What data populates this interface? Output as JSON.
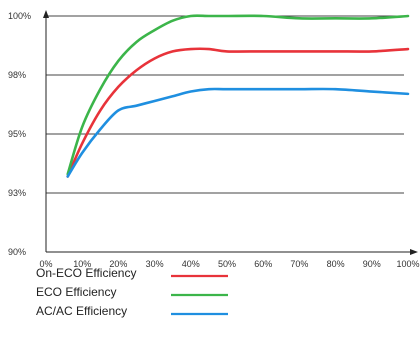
{
  "chart_data": {
    "type": "line",
    "x": [
      6,
      10,
      15,
      20,
      25,
      30,
      35,
      40,
      45,
      50,
      60,
      70,
      80,
      90,
      100
    ],
    "x_ticks": [
      "0%",
      "10%",
      "20%",
      "30%",
      "40%",
      "50%",
      "60%",
      "70%",
      "80%",
      "90%",
      "100%"
    ],
    "y_ticks": [
      "90%",
      "93%",
      "95%",
      "98%",
      "100%"
    ],
    "xlim": [
      0,
      100
    ],
    "ylim": [
      90,
      100
    ],
    "grid": "horizontal",
    "series": [
      {
        "name": "On-ECO Efficiency",
        "color": "#e8333a",
        "values": [
          93.2,
          94.6,
          96.0,
          97.0,
          97.7,
          98.2,
          98.5,
          98.6,
          98.6,
          98.5,
          98.5,
          98.5,
          98.5,
          98.5,
          98.6
        ]
      },
      {
        "name": "ECO Efficiency",
        "color": "#3cb54a",
        "values": [
          93.3,
          95.3,
          96.9,
          98.1,
          98.9,
          99.4,
          99.8,
          100.0,
          100.0,
          100.0,
          100.0,
          99.9,
          99.9,
          99.9,
          100.0
        ]
      },
      {
        "name": "AC/AC Efficiency",
        "color": "#1f8fe0",
        "values": [
          93.2,
          94.2,
          95.2,
          96.0,
          96.2,
          96.4,
          96.6,
          96.8,
          96.9,
          96.9,
          96.9,
          96.9,
          96.9,
          96.8,
          96.7
        ]
      }
    ]
  }
}
